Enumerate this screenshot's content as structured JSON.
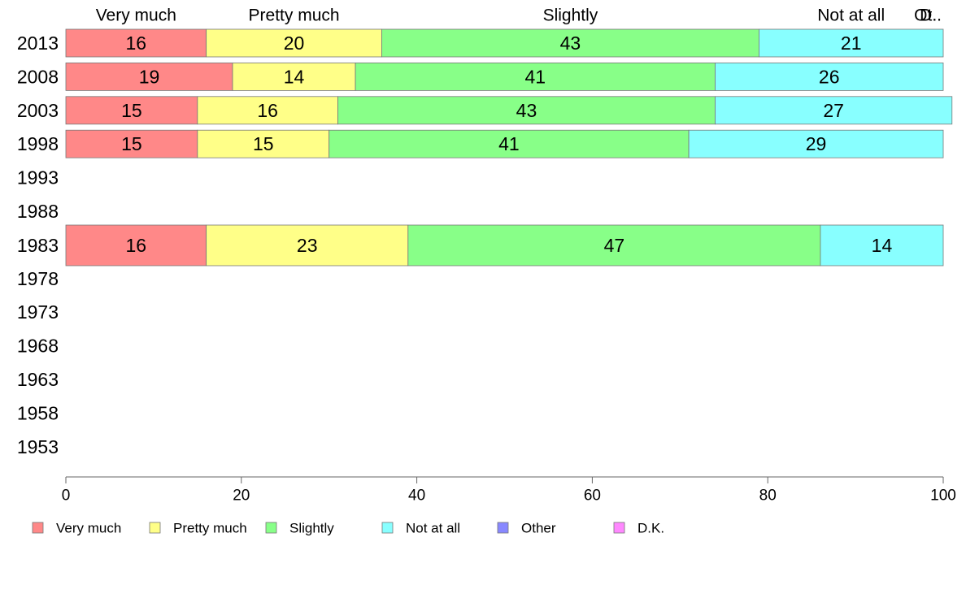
{
  "chart_data": {
    "type": "bar",
    "orientation": "horizontal",
    "stacked": true,
    "xlim": [
      0,
      100
    ],
    "xticks": [
      0,
      20,
      40,
      60,
      80,
      100
    ],
    "categories": [
      "2013",
      "2008",
      "2003",
      "1998",
      "1993",
      "1988",
      "1983",
      "1978",
      "1973",
      "1968",
      "1963",
      "1958",
      "1953"
    ],
    "series": [
      {
        "name": "Very much",
        "color": "#ff8888",
        "values": [
          16,
          19,
          15,
          15,
          null,
          null,
          16,
          null,
          null,
          null,
          null,
          null,
          null
        ]
      },
      {
        "name": "Pretty much",
        "color": "#ffff88",
        "values": [
          20,
          14,
          16,
          15,
          null,
          null,
          23,
          null,
          null,
          null,
          null,
          null,
          null
        ]
      },
      {
        "name": "Slightly",
        "color": "#88ff88",
        "values": [
          43,
          41,
          43,
          41,
          null,
          null,
          47,
          null,
          null,
          null,
          null,
          null,
          null
        ]
      },
      {
        "name": "Not at all",
        "color": "#88ffff",
        "values": [
          21,
          26,
          27,
          29,
          null,
          null,
          14,
          null,
          null,
          null,
          null,
          null,
          null
        ]
      },
      {
        "name": "Other",
        "color": "#8888ff",
        "values": [
          0,
          0,
          0,
          0,
          null,
          null,
          0,
          null,
          null,
          null,
          null,
          null,
          null
        ]
      },
      {
        "name": "D.K.",
        "color": "#ff88ff",
        "values": [
          0,
          0,
          0,
          0,
          null,
          null,
          0,
          null,
          null,
          null,
          null,
          null,
          null
        ]
      }
    ],
    "top_labels": [
      "Very much",
      "Pretty much",
      "Slightly",
      "Not at all",
      "Ot..",
      "D.."
    ],
    "legend": [
      "Very much",
      "Pretty much",
      "Slightly",
      "Not at all",
      "Other",
      "D.K."
    ],
    "title": "",
    "xlabel": "",
    "ylabel": ""
  }
}
